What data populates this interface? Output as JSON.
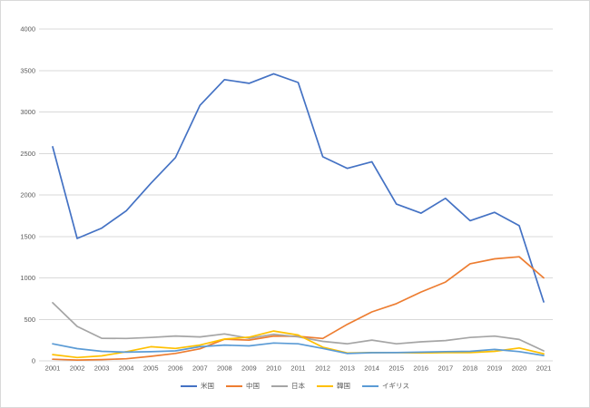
{
  "chart_data": {
    "type": "line",
    "x": [
      "2001",
      "2002",
      "2003",
      "2004",
      "2005",
      "2006",
      "2007",
      "2008",
      "2009",
      "2010",
      "2011",
      "2012",
      "2013",
      "2014",
      "2015",
      "2016",
      "2017",
      "2018",
      "2019",
      "2020",
      "2021"
    ],
    "series": [
      {
        "id": "usa",
        "name": "米国",
        "color": "#4472C4",
        "values": [
          2580,
          1475,
          1600,
          1810,
          2140,
          2450,
          3080,
          3390,
          3345,
          3460,
          3355,
          2460,
          2320,
          2400,
          1890,
          1780,
          1960,
          1690,
          1790,
          1630,
          710
        ]
      },
      {
        "id": "china",
        "name": "中国",
        "color": "#ED7D31",
        "values": [
          20,
          10,
          15,
          25,
          55,
          90,
          145,
          260,
          250,
          300,
          295,
          270,
          440,
          590,
          690,
          830,
          950,
          1170,
          1230,
          1255,
          1000
        ]
      },
      {
        "id": "japan",
        "name": "日本",
        "color": "#A5A5A5",
        "values": [
          700,
          415,
          272,
          270,
          282,
          300,
          288,
          325,
          272,
          320,
          290,
          235,
          205,
          250,
          205,
          230,
          245,
          282,
          298,
          258,
          120
        ]
      },
      {
        "id": "korea",
        "name": "韓国",
        "color": "#FFC000",
        "values": [
          75,
          40,
          60,
          110,
          170,
          150,
          190,
          262,
          285,
          360,
          312,
          165,
          95,
          100,
          100,
          95,
          100,
          100,
          115,
          155,
          85
        ]
      },
      {
        "id": "uk",
        "name": "イギリス",
        "color": "#5B9BD5",
        "values": [
          205,
          148,
          115,
          105,
          110,
          120,
          170,
          190,
          180,
          215,
          205,
          150,
          88,
          98,
          100,
          105,
          112,
          115,
          138,
          112,
          65
        ]
      }
    ],
    "y_tick_labels": [
      "0",
      "500",
      "1000",
      "1500",
      "2000",
      "2500",
      "3000",
      "3500",
      "4000"
    ],
    "ylim": [
      0,
      4000
    ],
    "ytick": 500,
    "grid": true,
    "legend_position": "bottom",
    "axis_label_color": "#595959",
    "gridline_color": "#D9D9D9"
  }
}
